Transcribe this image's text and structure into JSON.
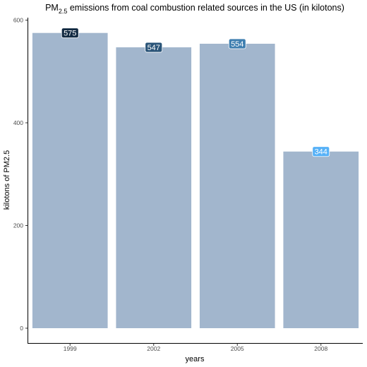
{
  "chart_data": {
    "type": "bar",
    "title_main": "PM",
    "title_sub": "2.5",
    "title_rest": " emissions from coal combustion related sources in the US (in kilotons)",
    "xlabel": "years",
    "ylabel": "kilotons of PM2.5",
    "categories": [
      "1999",
      "2002",
      "2005",
      "2008"
    ],
    "values": [
      575,
      547,
      554,
      344
    ],
    "data_labels": [
      "575",
      "547",
      "554",
      "344"
    ],
    "ylim": [
      0,
      620
    ],
    "yticks": [
      0,
      200,
      400,
      600
    ],
    "ytick_labels": [
      "0",
      "200",
      "400",
      "600"
    ],
    "grid": false,
    "colors": {
      "bar": "#a2b6cd",
      "label_fills": [
        "#132b43",
        "#2a5478",
        "#3f7fb0",
        "#56b1f7"
      ]
    }
  }
}
